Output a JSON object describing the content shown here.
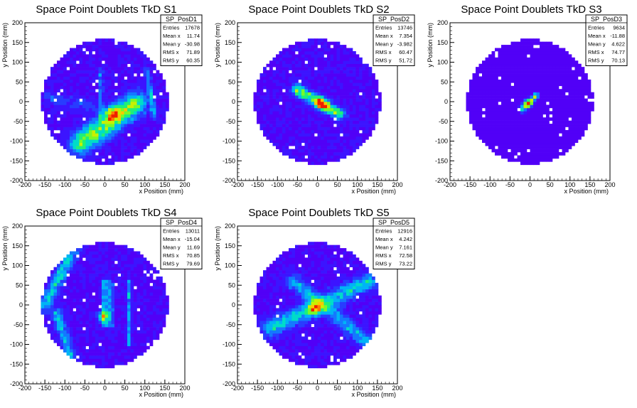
{
  "chart_data": [
    {
      "type": "heatmap",
      "title": "Space Point Doublets TkD S1",
      "xlabel": "x Position (mm)",
      "ylabel": "y Position (mm)",
      "xlim": [
        -200,
        200
      ],
      "ylim": [
        -200,
        200
      ],
      "xticks": [
        -200,
        -150,
        -100,
        -50,
        0,
        50,
        100,
        150,
        200
      ],
      "yticks": [
        -200,
        -150,
        -100,
        -50,
        0,
        50,
        100,
        150,
        200
      ],
      "stats": {
        "name": "SP_PosD1",
        "rows": [
          {
            "label": "Entries",
            "value": "17678"
          },
          {
            "label": "Mean x",
            "value": "11.74"
          },
          {
            "label": "Mean y",
            "value": "-30.98"
          },
          {
            "label": "RMS x",
            "value": "71.89"
          },
          {
            "label": "RMS y",
            "value": "60.35"
          }
        ]
      },
      "features": [
        {
          "kind": "band",
          "x1": -60,
          "y1": -105,
          "x2": 75,
          "y2": -5,
          "width": 40,
          "strength": 0.55
        },
        {
          "kind": "blob",
          "x": 20,
          "y": -30,
          "r": 28,
          "strength": 0.5
        },
        {
          "kind": "band",
          "x1": 105,
          "y1": 80,
          "x2": 125,
          "y2": -40,
          "width": 10,
          "strength": 0.28
        },
        {
          "kind": "band",
          "x1": -10,
          "y1": 80,
          "x2": -10,
          "y2": -40,
          "width": 8,
          "strength": 0.25
        },
        {
          "kind": "band",
          "x1": -140,
          "y1": 10,
          "x2": -40,
          "y2": -10,
          "width": 20,
          "strength": 0.15
        }
      ]
    },
    {
      "type": "heatmap",
      "title": "Space Point Doublets TkD S2",
      "xlabel": "x Position (mm)",
      "ylabel": "y Position (mm)",
      "xlim": [
        -200,
        200
      ],
      "ylim": [
        -200,
        200
      ],
      "xticks": [
        -200,
        -150,
        -100,
        -50,
        0,
        50,
        100,
        150,
        200
      ],
      "yticks": [
        -200,
        -150,
        -100,
        -50,
        0,
        50,
        100,
        150,
        200
      ],
      "stats": {
        "name": "SP_PosD2",
        "rows": [
          {
            "label": "Entries",
            "value": "13746"
          },
          {
            "label": "Mean x",
            "value": "7.354"
          },
          {
            "label": "Mean y",
            "value": "-3.982"
          },
          {
            "label": "RMS x",
            "value": "60.47"
          },
          {
            "label": "RMS y",
            "value": "51.72"
          }
        ]
      },
      "features": [
        {
          "kind": "band",
          "x1": -50,
          "y1": 30,
          "x2": 55,
          "y2": -30,
          "width": 20,
          "strength": 0.55
        },
        {
          "kind": "blob",
          "x": 10,
          "y": -5,
          "r": 20,
          "strength": 0.55
        }
      ]
    },
    {
      "type": "heatmap",
      "title": "Space Point Doublets TkD S3",
      "xlabel": "x Position (mm)",
      "ylabel": "y Position (mm)",
      "xlim": [
        -200,
        200
      ],
      "ylim": [
        -200,
        200
      ],
      "xticks": [
        -200,
        -150,
        -100,
        -50,
        0,
        50,
        100,
        150,
        200
      ],
      "yticks": [
        -200,
        -150,
        -100,
        -50,
        0,
        50,
        100,
        150,
        200
      ],
      "stats": {
        "name": "SP_PosD3",
        "rows": [
          {
            "label": "Entries",
            "value": "9634"
          },
          {
            "label": "Mean x",
            "value": "-11.88"
          },
          {
            "label": "Mean y",
            "value": "4.622"
          },
          {
            "label": "RMS x",
            "value": "74.77"
          },
          {
            "label": "RMS y",
            "value": "70.13"
          }
        ]
      },
      "features": [
        {
          "kind": "band",
          "x1": -20,
          "y1": -20,
          "x2": 15,
          "y2": 15,
          "width": 10,
          "strength": 0.6
        },
        {
          "kind": "blob",
          "x": -5,
          "y": -5,
          "r": 15,
          "strength": 0.55
        }
      ]
    },
    {
      "type": "heatmap",
      "title": "Space Point Doublets TkD S4",
      "xlabel": "x Position (mm)",
      "ylabel": "y Position (mm)",
      "xlim": [
        -200,
        200
      ],
      "ylim": [
        -200,
        200
      ],
      "xticks": [
        -200,
        -150,
        -100,
        -50,
        0,
        50,
        100,
        150,
        200
      ],
      "yticks": [
        -200,
        -150,
        -100,
        -50,
        0,
        50,
        100,
        150,
        200
      ],
      "stats": {
        "name": "SP_PosD4",
        "rows": [
          {
            "label": "Entries",
            "value": "13011"
          },
          {
            "label": "Mean x",
            "value": "-15.04"
          },
          {
            "label": "Mean y",
            "value": "11.69"
          },
          {
            "label": "RMS x",
            "value": "70.85"
          },
          {
            "label": "RMS y",
            "value": "79.69"
          }
        ]
      },
      "features": [
        {
          "kind": "band",
          "x1": 0,
          "y1": 60,
          "x2": 0,
          "y2": -50,
          "width": 8,
          "strength": 0.45
        },
        {
          "kind": "band",
          "x1": 15,
          "y1": 60,
          "x2": 15,
          "y2": -50,
          "width": 8,
          "strength": 0.35
        },
        {
          "kind": "band",
          "x1": 60,
          "y1": 60,
          "x2": 60,
          "y2": -100,
          "width": 8,
          "strength": 0.3
        },
        {
          "kind": "blob",
          "x": -5,
          "y": -30,
          "r": 18,
          "strength": 0.55
        },
        {
          "kind": "band",
          "x1": -150,
          "y1": 0,
          "x2": -80,
          "y2": 140,
          "width": 22,
          "strength": 0.35
        },
        {
          "kind": "band",
          "x1": -120,
          "y1": -20,
          "x2": -80,
          "y2": -150,
          "width": 20,
          "strength": 0.3
        }
      ]
    },
    {
      "type": "heatmap",
      "title": "Space Point Doublets TkD S5",
      "xlabel": "x Position (mm)",
      "ylabel": "y Position (mm)",
      "xlim": [
        -200,
        200
      ],
      "ylim": [
        -200,
        200
      ],
      "xticks": [
        -200,
        -150,
        -100,
        -50,
        0,
        50,
        100,
        150,
        200
      ],
      "yticks": [
        -200,
        -150,
        -100,
        -50,
        0,
        50,
        100,
        150,
        200
      ],
      "stats": {
        "name": "SP_PosD5",
        "rows": [
          {
            "label": "Entries",
            "value": "12916"
          },
          {
            "label": "Mean x",
            "value": "4.242"
          },
          {
            "label": "Mean y",
            "value": "7.161"
          },
          {
            "label": "RMS x",
            "value": "72.58"
          },
          {
            "label": "RMS y",
            "value": "73.22"
          }
        ]
      },
      "features": [
        {
          "kind": "band",
          "x1": -120,
          "y1": -60,
          "x2": 130,
          "y2": 60,
          "width": 30,
          "strength": 0.35
        },
        {
          "kind": "band",
          "x1": -60,
          "y1": 60,
          "x2": 120,
          "y2": -90,
          "width": 25,
          "strength": 0.3
        },
        {
          "kind": "blob",
          "x": -10,
          "y": -10,
          "r": 22,
          "strength": 0.5
        }
      ]
    }
  ]
}
